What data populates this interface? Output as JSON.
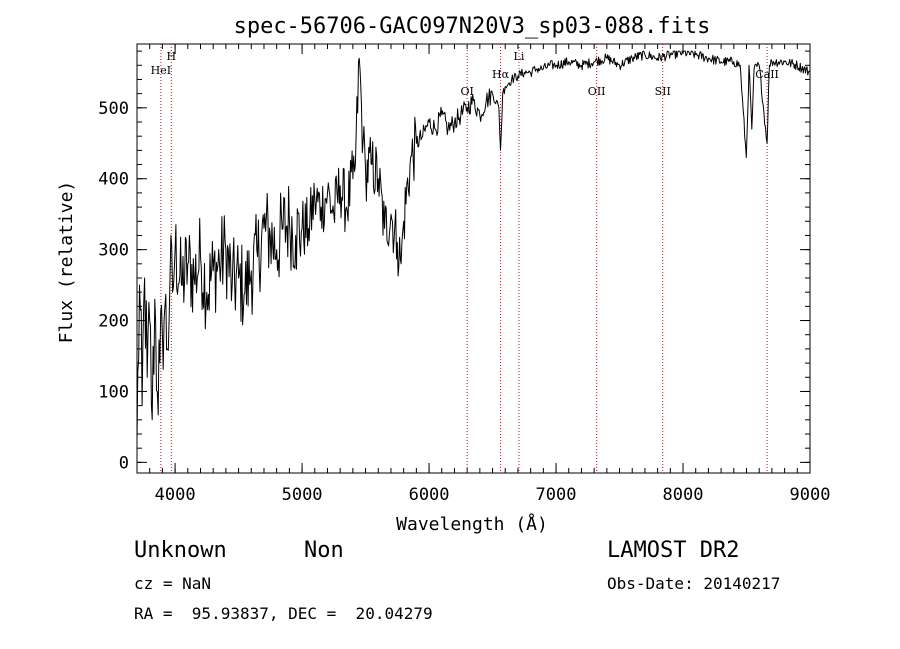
{
  "chart_data": {
    "type": "line",
    "title": "spec-56706-GAC097N20V3_sp03-088.fits",
    "xlabel": "Wavelength (Å)",
    "ylabel": "Flux (relative)",
    "xlim": [
      3700,
      9000
    ],
    "ylim": [
      -15,
      590
    ],
    "xticks": [
      4000,
      5000,
      6000,
      7000,
      8000,
      9000
    ],
    "yticks": [
      0,
      100,
      200,
      300,
      400,
      500
    ],
    "x_minor_step": 100,
    "y_minor_step": 20,
    "grid": false,
    "legend": "none",
    "series": [
      {
        "color": "#000000",
        "x": [
          3700,
          3720,
          3740,
          3760,
          3780,
          3800,
          3820,
          3840,
          3860,
          3880,
          3900,
          3920,
          3940,
          3960,
          3980,
          4000,
          4050,
          4100,
          4150,
          4200,
          4250,
          4300,
          4350,
          4400,
          4450,
          4500,
          4550,
          4600,
          4650,
          4700,
          4750,
          4800,
          4850,
          4900,
          4950,
          5000,
          5050,
          5100,
          5150,
          5200,
          5250,
          5300,
          5350,
          5400,
          5420,
          5450,
          5480,
          5500,
          5550,
          5600,
          5650,
          5700,
          5750,
          5780,
          5800,
          5850,
          5900,
          5950,
          6000,
          6050,
          6100,
          6150,
          6200,
          6250,
          6300,
          6350,
          6400,
          6450,
          6500,
          6550,
          6563,
          6580,
          6600,
          6650,
          6700,
          6750,
          6800,
          6850,
          6900,
          6950,
          7000,
          7100,
          7200,
          7300,
          7400,
          7500,
          7600,
          7700,
          7800,
          7900,
          8000,
          8100,
          8200,
          8300,
          8400,
          8450,
          8498,
          8520,
          8542,
          8560,
          8600,
          8662,
          8680,
          8700,
          8800,
          8900,
          9000
        ],
        "y": [
          30,
          250,
          80,
          260,
          120,
          200,
          60,
          230,
          100,
          140,
          180,
          220,
          160,
          260,
          240,
          300,
          250,
          280,
          260,
          290,
          240,
          270,
          280,
          300,
          250,
          260,
          240,
          270,
          290,
          330,
          320,
          300,
          330,
          340,
          320,
          330,
          330,
          370,
          360,
          380,
          350,
          390,
          360,
          400,
          420,
          570,
          450,
          410,
          420,
          400,
          330,
          350,
          310,
          280,
          340,
          420,
          450,
          460,
          480,
          470,
          490,
          470,
          480,
          490,
          500,
          510,
          490,
          510,
          520,
          500,
          440,
          520,
          530,
          540,
          545,
          550,
          550,
          555,
          555,
          560,
          560,
          565,
          560,
          565,
          570,
          560,
          570,
          575,
          570,
          575,
          578,
          575,
          570,
          565,
          565,
          560,
          430,
          560,
          470,
          555,
          560,
          450,
          560,
          565,
          565,
          560,
          550
        ],
        "values_note_style": "line"
      }
    ],
    "line_markers": [
      {
        "label": "HeI",
        "x": 3888
      },
      {
        "label": "H",
        "x": 3970
      },
      {
        "label": "OI",
        "x": 6300
      },
      {
        "label": "Hα",
        "x": 6563
      },
      {
        "label": "Li",
        "x": 6708
      },
      {
        "label": "OII",
        "x": 7320
      },
      {
        "label": "SII",
        "x": 7840
      },
      {
        "label": "CaII",
        "x": 8662
      }
    ]
  },
  "info": {
    "object_class": "Unknown",
    "object_subclass": "Non",
    "survey": "LAMOST DR2",
    "cz": "cz = NaN",
    "obs_date": "Obs-Date: 20140217",
    "coords": "RA =  95.93837, DEC =  20.04279"
  }
}
